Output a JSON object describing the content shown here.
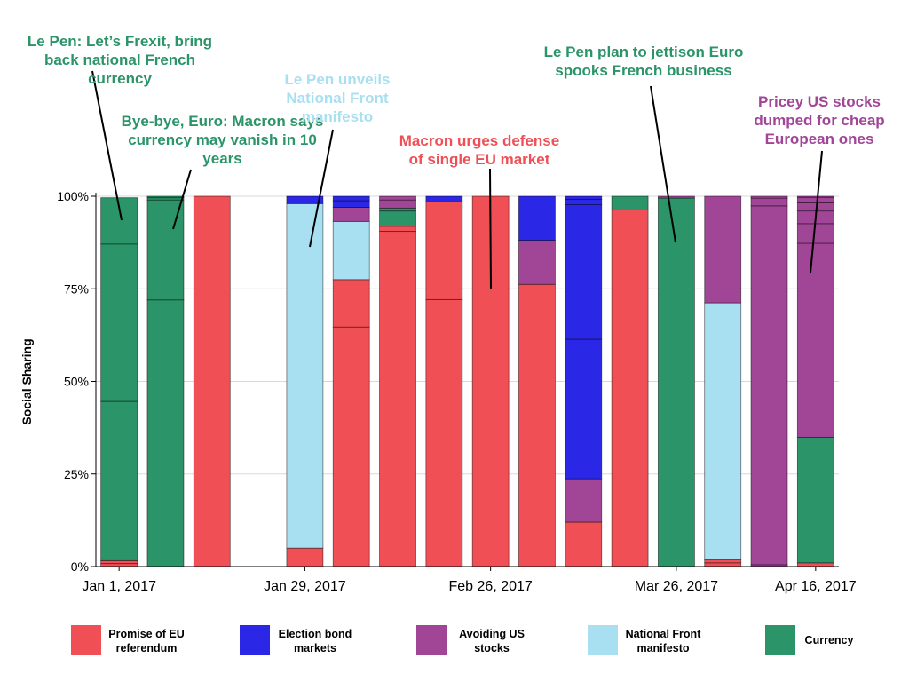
{
  "chart_data": {
    "type": "bar",
    "stacked": true,
    "ylabel": "Social Sharing",
    "ylim": [
      0,
      100
    ],
    "y_ticks": [
      "0%",
      "25%",
      "50%",
      "75%",
      "100%"
    ],
    "x_ticks": [
      {
        "label": "Jan 1, 2017",
        "at": 0.5
      },
      {
        "label": "Jan 29, 2017",
        "at": 4.5
      },
      {
        "label": "Feb 26, 2017",
        "at": 8.5
      },
      {
        "label": "Mar 26, 2017",
        "at": 12.5
      },
      {
        "label": "Apr 16, 2017",
        "at": 15.5
      }
    ],
    "series": [
      {
        "name": "Promise of EU referendum",
        "color": "#ef4f55"
      },
      {
        "name": "Election bond markets",
        "color": "#2b27e6"
      },
      {
        "name": "Avoiding US stocks",
        "color": "#a14597"
      },
      {
        "name": "National Front manifesto",
        "color": "#a8dff1"
      },
      {
        "name": "Currency",
        "color": "#2b9468"
      }
    ],
    "bars": [
      {
        "segments": [
          {
            "s": 0,
            "v": [
              0.8,
              0.8
            ]
          },
          {
            "s": 4,
            "v": [
              43,
              42.5,
              12.5
            ]
          }
        ]
      },
      {
        "segments": [
          {
            "s": 4,
            "v": [
              72,
              27,
              0.6,
              0.4
            ]
          }
        ]
      },
      {
        "segments": [
          {
            "s": 0,
            "v": [
              100
            ]
          }
        ]
      },
      {
        "segments": []
      },
      {
        "segments": [
          {
            "s": 0,
            "v": [
              5
            ]
          },
          {
            "s": 3,
            "v": [
              93
            ]
          },
          {
            "s": 1,
            "v": [
              2
            ]
          }
        ]
      },
      {
        "segments": [
          {
            "s": 0,
            "v": [
              64.7,
              12.8
            ]
          },
          {
            "s": 3,
            "v": [
              15.7
            ]
          },
          {
            "s": 2,
            "v": [
              3.8
            ]
          },
          {
            "s": 1,
            "v": [
              1.8,
              1.2
            ]
          }
        ]
      },
      {
        "segments": [
          {
            "s": 0,
            "v": [
              90.5,
              1.4
            ]
          },
          {
            "s": 4,
            "v": [
              4.1,
              0.8
            ]
          },
          {
            "s": 2,
            "v": [
              2.2,
              1.0
            ]
          }
        ]
      },
      {
        "segments": [
          {
            "s": 0,
            "v": [
              72.1,
              26.4
            ]
          },
          {
            "s": 1,
            "v": [
              1.5
            ]
          }
        ]
      },
      {
        "segments": [
          {
            "s": 0,
            "v": [
              100
            ]
          }
        ]
      },
      {
        "segments": [
          {
            "s": 0,
            "v": [
              76.2
            ]
          },
          {
            "s": 2,
            "v": [
              11.9
            ]
          },
          {
            "s": 1,
            "v": [
              11.9
            ]
          }
        ]
      },
      {
        "segments": [
          {
            "s": 0,
            "v": [
              12
            ]
          },
          {
            "s": 2,
            "v": [
              11.7
            ]
          },
          {
            "s": 1,
            "v": [
              37.7,
              36.3,
              1.5,
              0.8
            ]
          }
        ]
      },
      {
        "segments": [
          {
            "s": 0,
            "v": [
              96.3
            ]
          },
          {
            "s": 4,
            "v": [
              3.7
            ]
          }
        ]
      },
      {
        "segments": [
          {
            "s": 4,
            "v": [
              99.5
            ]
          },
          {
            "s": 2,
            "v": [
              0.5
            ]
          }
        ]
      },
      {
        "segments": [
          {
            "s": 0,
            "v": [
              1.0,
              0.8
            ]
          },
          {
            "s": 3,
            "v": [
              69.4
            ]
          },
          {
            "s": 2,
            "v": [
              28.8
            ]
          }
        ]
      },
      {
        "segments": [
          {
            "s": 2,
            "v": [
              0.5,
              96.9,
              2.1,
              0.5
            ]
          }
        ]
      },
      {
        "segments": [
          {
            "s": 0,
            "v": [
              1.0
            ]
          },
          {
            "s": 4,
            "v": [
              33.9
            ]
          },
          {
            "s": 2,
            "v": [
              52.4,
              5.3,
              3.4,
              2.2,
              1.5,
              0.3
            ]
          }
        ]
      }
    ],
    "annotations": [
      {
        "text": "Le Pen: Let’s Frexit, bring back national French currency",
        "color": "#2b9468",
        "bar": 0
      },
      {
        "text": "Bye-bye, Euro: Macron says currency may vanish in 10 years",
        "color": "#2b9468",
        "bar": 1
      },
      {
        "text": "Le Pen unveils National Front manifesto",
        "color": "#a8dff1",
        "bar": 4
      },
      {
        "text": "Macron urges defense of single EU market",
        "color": "#ef4f55",
        "bar": 8
      },
      {
        "text": "Le Pen plan to jettison Euro spooks French business",
        "color": "#2b9468",
        "bar": 12
      },
      {
        "text": "Pricey US stocks dumped for cheap European ones",
        "color": "#a14597",
        "bar": 15
      }
    ]
  }
}
